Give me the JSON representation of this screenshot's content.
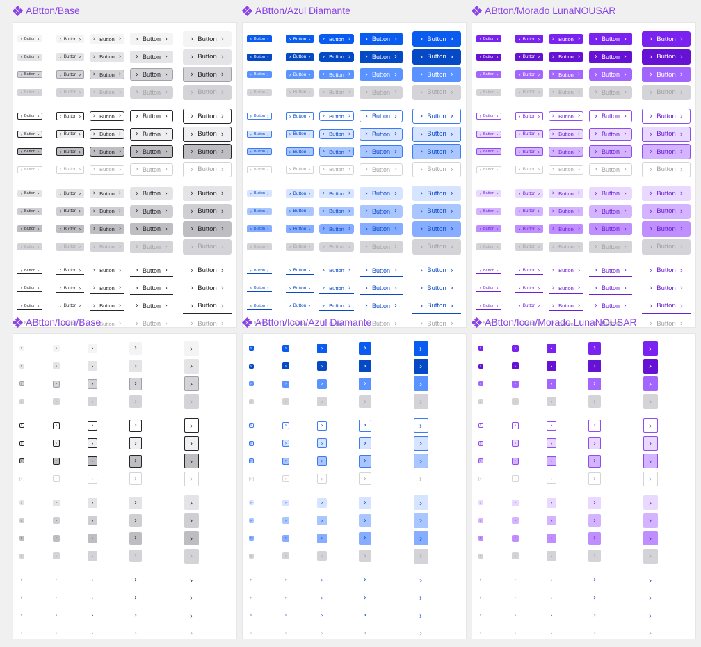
{
  "frames": [
    {
      "name": "base",
      "title": "ABtton/Base",
      "kind": "text",
      "palette": "base"
    },
    {
      "name": "azul",
      "title": "ABtton/Azul Diamante",
      "kind": "text",
      "palette": "blue"
    },
    {
      "name": "morado",
      "title": "ABtton/Morado LunaNOUSAR",
      "kind": "text",
      "palette": "purple"
    },
    {
      "name": "icon-base",
      "title": "ABtton/Icon/Base",
      "kind": "icon",
      "palette": "base"
    },
    {
      "name": "icon-azul",
      "title": "ABtton/Icon/Azul Diamante",
      "kind": "icon",
      "palette": "blue"
    },
    {
      "name": "icon-morado",
      "title": "ABtton/Icon/Morado LunaNOUSAR",
      "kind": "icon",
      "palette": "purple"
    }
  ],
  "button_label": "Button",
  "chevron": "›",
  "sizes": [
    "xs",
    "sm",
    "md",
    "lg",
    "xl"
  ],
  "variants": [
    {
      "name": "filled",
      "states": [
        "default",
        "hover",
        "pressed",
        "disabled"
      ]
    },
    {
      "name": "outline",
      "states": [
        "default",
        "hover",
        "pressed",
        "disabled"
      ]
    },
    {
      "name": "soft",
      "states": [
        "default",
        "hover",
        "pressed",
        "disabled"
      ]
    },
    {
      "name": "link",
      "states": [
        "default",
        "hover",
        "pressed",
        "disabled"
      ]
    }
  ],
  "colors": {
    "title": "#8a44e6",
    "disabled_bg": "#d4d4d8",
    "disabled_text": "#a3a3a3",
    "base": {
      "filled": [
        "#f4f4f5",
        "#e4e4e7",
        "#d4d4d8"
      ],
      "filled_text": "#27272a",
      "outline_border": "#27272a",
      "soft": [
        "#e4e4e7",
        "#cfcfd3",
        "#bdbdc2"
      ],
      "link": "#27272a"
    },
    "blue": {
      "filled": [
        "#0a5cf0",
        "#0649c4",
        "#5a92ff"
      ],
      "filled_text": "#ffffff",
      "outline_border": "#3b7bf5",
      "soft": [
        "#d6e4ff",
        "#a9c6ff",
        "#86adff"
      ],
      "link": "#0a49c7"
    },
    "purple": {
      "filled": [
        "#7a23f0",
        "#6512d4",
        "#a266ff"
      ],
      "filled_text": "#ffffff",
      "outline_border": "#8e4df2",
      "soft": [
        "#ead9ff",
        "#d4b4ff",
        "#bf8fff"
      ],
      "link": "#6b1fd6"
    }
  }
}
